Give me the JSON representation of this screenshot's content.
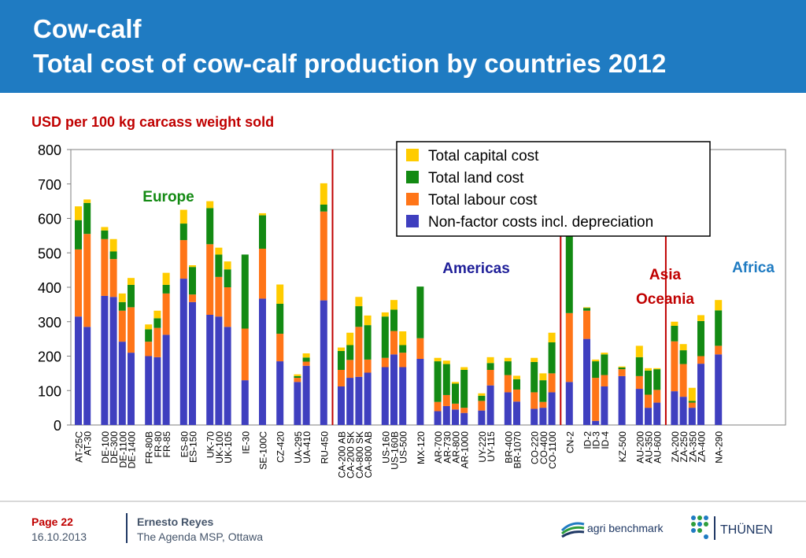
{
  "header": {
    "title_line1": "Cow-calf",
    "title_line2": "Total cost of cow-calf production by countries 2012"
  },
  "unit_label": "USD per 100 kg carcass weight sold",
  "footer": {
    "page_label": "Page 22",
    "date": "16.10.2013",
    "author": "Ernesto Reyes",
    "event": "The Agenda MSP, Ottawa",
    "logo1_text": "agri benchmark",
    "logo2_text": "THÜNEN"
  },
  "colors": {
    "header_bg": "#1f7bc2",
    "non_factor": "#3f3fbf",
    "labour": "#ff7518",
    "land": "#138a13",
    "capital": "#ffcc00",
    "divider": "#c00000"
  },
  "chart_data": {
    "type": "bar",
    "stacked": true,
    "ylim": [
      0,
      800
    ],
    "yticks": [
      0,
      100,
      200,
      300,
      400,
      500,
      600,
      700,
      800
    ],
    "grid": false,
    "legend_position": "top-right",
    "region_labels": [
      {
        "text": "Europe",
        "color": "#138a13"
      },
      {
        "text": "Americas",
        "color": "#1f1f99"
      },
      {
        "text": "Asia",
        "color": "#c00000"
      },
      {
        "text": "Oceania",
        "color": "#c00000"
      },
      {
        "text": "Africa",
        "color": "#1f7bc2"
      }
    ],
    "series": [
      {
        "name": "Total capital cost",
        "color": "#ffcc00"
      },
      {
        "name": "Total land cost",
        "color": "#138a13"
      },
      {
        "name": "Total labour cost",
        "color": "#ff7518"
      },
      {
        "name": "Non-factor costs incl. depreciation",
        "color": "#3f3fbf"
      }
    ],
    "groups": [
      {
        "region": "Europe",
        "bars": [
          {
            "label": "AT-25C",
            "nf": 315,
            "lab": 195,
            "land": 85,
            "cap": 40
          },
          {
            "label": "AT-30",
            "nf": 285,
            "lab": 270,
            "land": 90,
            "cap": 10
          }
        ]
      },
      {
        "region": "Europe",
        "bars": [
          {
            "label": "DE-100",
            "nf": 375,
            "lab": 165,
            "land": 25,
            "cap": 10
          },
          {
            "label": "DE-300",
            "nf": 372,
            "lab": 110,
            "land": 22,
            "cap": 36
          },
          {
            "label": "DE-1100",
            "nf": 242,
            "lab": 90,
            "land": 25,
            "cap": 25
          },
          {
            "label": "DE-1400",
            "nf": 210,
            "lab": 132,
            "land": 65,
            "cap": 20
          }
        ]
      },
      {
        "region": "Europe",
        "bars": [
          {
            "label": "FR-80B",
            "nf": 200,
            "lab": 42,
            "land": 36,
            "cap": 14
          },
          {
            "label": "FR-80",
            "nf": 197,
            "lab": 85,
            "land": 28,
            "cap": 22
          },
          {
            "label": "FR-85",
            "nf": 262,
            "lab": 120,
            "land": 25,
            "cap": 35
          }
        ]
      },
      {
        "region": "Europe",
        "bars": [
          {
            "label": "ES-80",
            "nf": 425,
            "lab": 112,
            "land": 48,
            "cap": 40
          },
          {
            "label": "ES-150",
            "nf": 357,
            "lab": 22,
            "land": 80,
            "cap": 5
          }
        ]
      },
      {
        "region": "Europe",
        "bars": [
          {
            "label": "UK-70",
            "nf": 320,
            "lab": 205,
            "land": 105,
            "cap": 20
          },
          {
            "label": "UK-100",
            "nf": 315,
            "lab": 115,
            "land": 65,
            "cap": 20
          },
          {
            "label": "UK-105",
            "nf": 285,
            "lab": 115,
            "land": 52,
            "cap": 23
          }
        ]
      },
      {
        "region": "Europe",
        "bars": [
          {
            "label": "IE-30",
            "nf": 130,
            "lab": 150,
            "land": 215,
            "cap": 0
          }
        ]
      },
      {
        "region": "Europe",
        "bars": [
          {
            "label": "SE-100C",
            "nf": 367,
            "lab": 145,
            "land": 97,
            "cap": 6
          }
        ]
      },
      {
        "region": "Europe",
        "bars": [
          {
            "label": "CZ-420",
            "nf": 185,
            "lab": 80,
            "land": 87,
            "cap": 56
          }
        ]
      },
      {
        "region": "Europe",
        "bars": [
          {
            "label": "UA-295",
            "nf": 125,
            "lab": 12,
            "land": 5,
            "cap": 5
          },
          {
            "label": "UA-410",
            "nf": 172,
            "lab": 12,
            "land": 12,
            "cap": 12
          }
        ]
      },
      {
        "region": "Europe",
        "bars": [
          {
            "label": "RU-450",
            "nf": 362,
            "lab": 258,
            "land": 20,
            "cap": 62
          }
        ]
      },
      {
        "region": "Americas",
        "bars": [
          {
            "label": "CA-200 AB",
            "nf": 112,
            "lab": 48,
            "land": 55,
            "cap": 10
          },
          {
            "label": "CA-200 SK",
            "nf": 137,
            "lab": 52,
            "land": 43,
            "cap": 36
          },
          {
            "label": "CA-800 SK",
            "nf": 140,
            "lab": 145,
            "land": 60,
            "cap": 27
          },
          {
            "label": "CA-800 AB",
            "nf": 152,
            "lab": 38,
            "land": 100,
            "cap": 28
          }
        ]
      },
      {
        "region": "Americas",
        "bars": [
          {
            "label": "US-160",
            "nf": 168,
            "lab": 27,
            "land": 120,
            "cap": 12
          },
          {
            "label": "US-160B",
            "nf": 205,
            "lab": 68,
            "land": 62,
            "cap": 28
          },
          {
            "label": "US-500",
            "nf": 168,
            "lab": 42,
            "land": 22,
            "cap": 40
          }
        ]
      },
      {
        "region": "Americas",
        "bars": [
          {
            "label": "MX-120",
            "nf": 192,
            "lab": 60,
            "land": 150,
            "cap": 0
          }
        ]
      },
      {
        "region": "Americas",
        "bars": [
          {
            "label": "AR-700",
            "nf": 40,
            "lab": 27,
            "land": 118,
            "cap": 10
          },
          {
            "label": "AR-730",
            "nf": 55,
            "lab": 32,
            "land": 90,
            "cap": 10
          },
          {
            "label": "AR-800",
            "nf": 45,
            "lab": 17,
            "land": 58,
            "cap": 5
          },
          {
            "label": "AR-1000",
            "nf": 35,
            "lab": 15,
            "land": 110,
            "cap": 8
          }
        ]
      },
      {
        "region": "Americas",
        "bars": [
          {
            "label": "UY-220",
            "nf": 42,
            "lab": 28,
            "land": 15,
            "cap": 7
          },
          {
            "label": "UY-115",
            "nf": 115,
            "lab": 45,
            "land": 20,
            "cap": 17
          }
        ]
      },
      {
        "region": "Americas",
        "bars": [
          {
            "label": "BR-400",
            "nf": 95,
            "lab": 50,
            "land": 40,
            "cap": 10
          },
          {
            "label": "BR-1070",
            "nf": 68,
            "lab": 35,
            "land": 30,
            "cap": 10
          }
        ]
      },
      {
        "region": "Americas",
        "bars": [
          {
            "label": "CO-220",
            "nf": 47,
            "lab": 48,
            "land": 88,
            "cap": 12
          },
          {
            "label": "CO-400",
            "nf": 50,
            "lab": 17,
            "land": 63,
            "cap": 20
          },
          {
            "label": "CO-1100",
            "nf": 95,
            "lab": 55,
            "land": 90,
            "cap": 28
          }
        ]
      },
      {
        "region": "Asia",
        "bars": [
          {
            "label": "CN-2",
            "nf": 125,
            "lab": 200,
            "land": 430,
            "cap": 0
          }
        ]
      },
      {
        "region": "Asia",
        "bars": [
          {
            "label": "ID-2",
            "nf": 250,
            "lab": 82,
            "land": 8,
            "cap": 2
          },
          {
            "label": "ID-3",
            "nf": 12,
            "lab": 125,
            "land": 48,
            "cap": 5
          },
          {
            "label": "ID-4",
            "nf": 112,
            "lab": 33,
            "land": 60,
            "cap": 5
          }
        ]
      },
      {
        "region": "Asia",
        "bars": [
          {
            "label": "KZ-500",
            "nf": 142,
            "lab": 20,
            "land": 5,
            "cap": 3
          }
        ]
      },
      {
        "region": "Oceania",
        "bars": [
          {
            "label": "AU-200",
            "nf": 105,
            "lab": 37,
            "land": 55,
            "cap": 33
          },
          {
            "label": "AU-350",
            "nf": 50,
            "lab": 38,
            "land": 70,
            "cap": 7
          },
          {
            "label": "AU-600",
            "nf": 65,
            "lab": 37,
            "land": 60,
            "cap": 3
          }
        ]
      },
      {
        "region": "Africa",
        "bars": [
          {
            "label": "ZA-200",
            "nf": 98,
            "lab": 145,
            "land": 45,
            "cap": 12
          },
          {
            "label": "ZA-250",
            "nf": 82,
            "lab": 95,
            "land": 40,
            "cap": 18
          },
          {
            "label": "ZA-350",
            "nf": 50,
            "lab": 15,
            "land": 5,
            "cap": 38
          },
          {
            "label": "ZA-400",
            "nf": 178,
            "lab": 22,
            "land": 102,
            "cap": 17
          }
        ]
      },
      {
        "region": "Africa",
        "bars": [
          {
            "label": "NA-290",
            "nf": 205,
            "lab": 25,
            "land": 103,
            "cap": 30
          }
        ]
      }
    ]
  }
}
